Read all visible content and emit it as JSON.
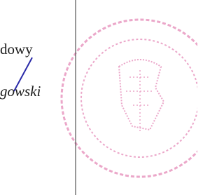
{
  "document": {
    "fragments": [
      "dowy",
      "gowski"
    ]
  }
}
